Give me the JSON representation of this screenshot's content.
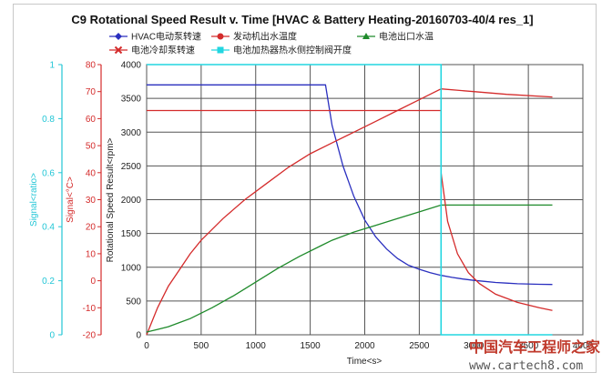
{
  "chart_data": {
    "type": "line",
    "title": "C9 Rotational Speed Result v. Time [HVAC & Battery Heating-20160703-40/4 res_1]",
    "xlabel": "Time<s>",
    "ylabel": "Rotational Speed Result<rpm>",
    "xlim": [
      0,
      4000
    ],
    "ylim": [
      0,
      4000
    ],
    "x_ticks": [
      "0",
      "500",
      "1000",
      "1500",
      "2000",
      "2500",
      "3000",
      "3500",
      "4000"
    ],
    "y_ticks": [
      "0",
      "500",
      "1000",
      "1500",
      "2000",
      "2500",
      "3000",
      "3500",
      "4000"
    ],
    "aux_axes": [
      {
        "label": "Signal<ratio>",
        "color": "#22c6d6",
        "ylim": [
          0,
          1
        ],
        "ticks": [
          "0",
          "0.2",
          "0.4",
          "0.6",
          "0.8",
          "1"
        ]
      },
      {
        "label": "Signal<°C>",
        "color": "#d42b2b",
        "ylim": [
          -20,
          80
        ],
        "ticks": [
          "-20",
          "-10",
          "0",
          "10",
          "20",
          "30",
          "40",
          "50",
          "60",
          "70",
          "80"
        ]
      }
    ],
    "grid": true,
    "legend_placement": "top",
    "series": [
      {
        "name": "HVAC电动泵转速",
        "axis": "rpm",
        "color": "#2a2fbf",
        "marker": "diamond",
        "x": [
          0,
          1640,
          1700,
          1800,
          1900,
          2000,
          2100,
          2200,
          2300,
          2400,
          2500,
          2600,
          2700,
          2800,
          2900,
          3000,
          3100,
          3200,
          3300,
          3400,
          3600,
          3720
        ],
        "values": [
          3700,
          3700,
          3100,
          2500,
          2050,
          1700,
          1450,
          1270,
          1130,
          1030,
          970,
          920,
          880,
          850,
          825,
          805,
          790,
          775,
          765,
          755,
          748,
          745
        ]
      },
      {
        "name": "发动机出水温度",
        "axis": "°C",
        "color": "#d42b2b",
        "marker": "circle",
        "x": [
          0,
          100,
          200,
          300,
          400,
          500,
          700,
          900,
          1100,
          1300,
          1500,
          1700,
          1900,
          2100,
          2300,
          2500,
          2700,
          3000,
          3300,
          3720
        ],
        "values": [
          -20,
          -10,
          -2,
          4,
          10,
          15,
          23,
          30,
          36,
          42,
          47,
          51,
          55,
          59,
          63,
          67,
          71,
          70,
          69,
          68
        ]
      },
      {
        "name": "电池出口水温",
        "axis": "°C",
        "color": "#1e8a2a",
        "marker": "triangle",
        "x": [
          0,
          100,
          200,
          300,
          400,
          600,
          800,
          1000,
          1200,
          1400,
          1600,
          1700,
          1900,
          2100,
          2300,
          2500,
          2700,
          3720
        ],
        "values": [
          -19,
          -18,
          -17,
          -15.5,
          -14,
          -10,
          -5.5,
          -0.5,
          4.5,
          9,
          13,
          15,
          18,
          20.5,
          23,
          25.5,
          28,
          28
        ]
      },
      {
        "name": "电池冷却泵转速",
        "axis": "°C",
        "color": "#d42b2b",
        "marker": "x",
        "x": [
          0,
          2700,
          2700,
          2760,
          2850,
          2950,
          3050,
          3200,
          3400,
          3600,
          3720
        ],
        "values": [
          63,
          63,
          40,
          22,
          10,
          3,
          -1,
          -5,
          -8,
          -10,
          -11
        ]
      },
      {
        "name": "电池加热器热水侧控制阀开度",
        "axis": "ratio",
        "color": "#22d6e0",
        "marker": "square",
        "x": [
          0,
          2700,
          2700,
          3720
        ],
        "values": [
          1,
          1,
          0,
          0
        ]
      }
    ]
  },
  "watermark": {
    "line1": "中国汽车工程师之家",
    "line2": "www.cartech8.com"
  }
}
